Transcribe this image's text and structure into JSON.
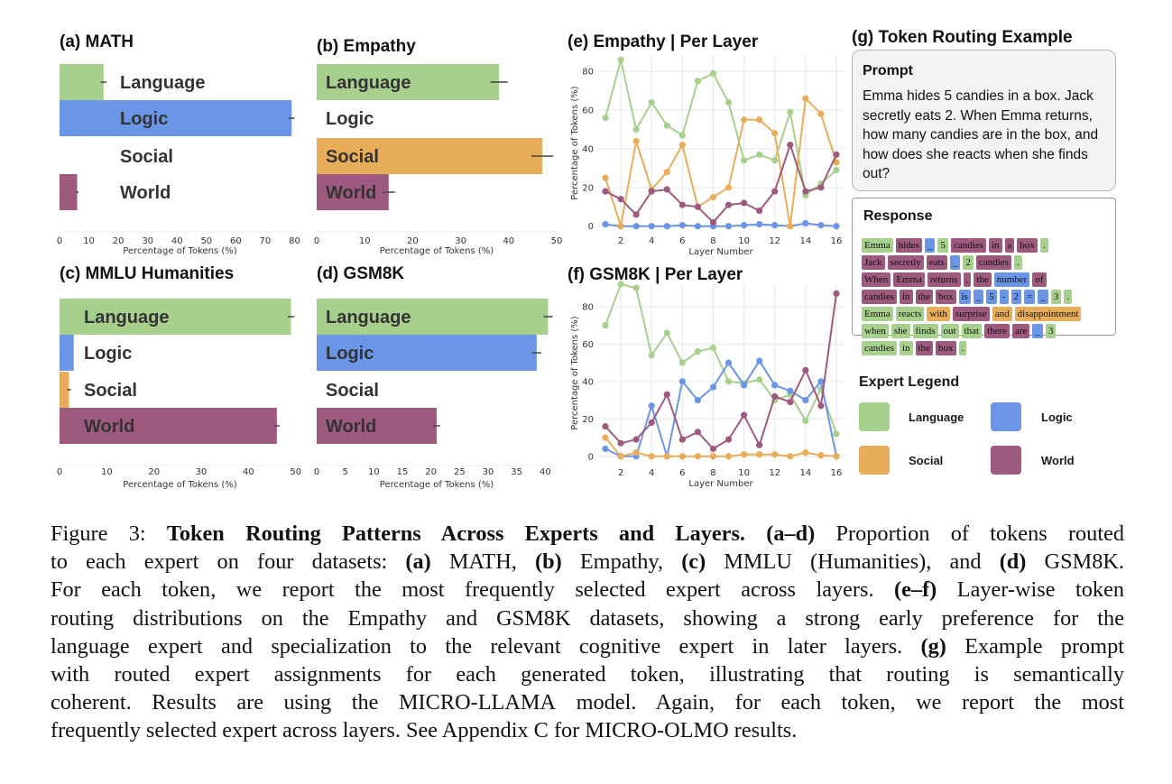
{
  "colors": {
    "Language": "#a8d08d",
    "Logic": "#6b95e6",
    "Social": "#e8ad58",
    "World": "#9e5a7e"
  },
  "experts": [
    "Language",
    "Logic",
    "Social",
    "World"
  ],
  "chart_data": [
    {
      "id": "a",
      "type": "bar",
      "title": "(a) MATH",
      "xlabel": "Percentage of Tokens (%)",
      "xlim": [
        0,
        82
      ],
      "xticks": [
        0,
        10,
        20,
        30,
        40,
        50,
        60,
        70,
        80
      ],
      "categories": [
        "Language",
        "Logic",
        "Social",
        "World"
      ],
      "values": [
        15,
        79,
        0,
        6
      ]
    },
    {
      "id": "b",
      "type": "bar",
      "title": "(b) Empathy",
      "xlabel": "Percentage of Tokens (%)",
      "xlim": [
        0,
        50
      ],
      "xticks": [
        0,
        10,
        20,
        30,
        40,
        50
      ],
      "categories": [
        "Language",
        "Logic",
        "Social",
        "World"
      ],
      "values": [
        38,
        0,
        47,
        15
      ]
    },
    {
      "id": "c",
      "type": "bar",
      "title": "(c) MMLU Humanities",
      "xlabel": "Percentage of Tokens (%)",
      "xlim": [
        0,
        51
      ],
      "xticks": [
        0,
        10,
        20,
        30,
        40,
        50
      ],
      "categories": [
        "Language",
        "Logic",
        "Social",
        "World"
      ],
      "values": [
        49,
        3,
        2,
        46
      ]
    },
    {
      "id": "d",
      "type": "bar",
      "title": "(d) GSM8K",
      "xlabel": "Percentage of Tokens (%)",
      "xlim": [
        0,
        42
      ],
      "xticks": [
        0,
        5,
        10,
        15,
        20,
        25,
        30,
        35,
        40
      ],
      "categories": [
        "Language",
        "Logic",
        "Social",
        "World"
      ],
      "values": [
        40.5,
        38.5,
        0,
        21
      ]
    },
    {
      "id": "e",
      "type": "line",
      "title": "(e) Empathy | Per Layer",
      "xlabel": "Layer Number",
      "ylabel": "Percentage of Tokens (%)",
      "ylim": [
        -2,
        88
      ],
      "yticks": [
        0,
        20,
        40,
        60,
        80
      ],
      "xticks": [
        2,
        4,
        6,
        8,
        10,
        12,
        14,
        16
      ],
      "x": [
        1,
        2,
        3,
        4,
        5,
        6,
        7,
        8,
        9,
        10,
        11,
        12,
        13,
        14,
        15,
        16
      ],
      "series": [
        {
          "name": "Language",
          "values": [
            56,
            86,
            50,
            64,
            52,
            47,
            75,
            79,
            64,
            34,
            37,
            34,
            59,
            16,
            22,
            29
          ]
        },
        {
          "name": "Logic",
          "values": [
            1,
            0,
            0,
            0,
            0,
            0.5,
            0,
            0,
            0,
            0.5,
            1,
            0.5,
            0,
            1.5,
            0.5,
            0
          ]
        },
        {
          "name": "Social",
          "values": [
            25,
            0,
            44,
            19,
            28,
            42,
            10,
            15,
            20,
            55,
            55,
            48,
            0,
            66,
            58,
            33
          ]
        },
        {
          "name": "World",
          "values": [
            18,
            14,
            6,
            18,
            19,
            11,
            10,
            2,
            11,
            12,
            8,
            18,
            42,
            18,
            20,
            37
          ]
        }
      ]
    },
    {
      "id": "f",
      "type": "line",
      "title": "(f) GSM8K | Per Layer",
      "xlabel": "Layer Number",
      "ylabel": "Percentage of Tokens (%)",
      "ylim": [
        -3,
        92
      ],
      "yticks": [
        0,
        20,
        40,
        60,
        80
      ],
      "xticks": [
        2,
        4,
        6,
        8,
        10,
        12,
        14,
        16
      ],
      "x": [
        1,
        2,
        3,
        4,
        5,
        6,
        7,
        8,
        9,
        10,
        11,
        12,
        13,
        14,
        15,
        16
      ],
      "series": [
        {
          "name": "Language",
          "values": [
            70,
            92,
            90,
            54,
            66,
            50,
            56,
            58,
            40,
            39,
            41,
            30,
            33,
            19,
            36,
            12
          ]
        },
        {
          "name": "Logic",
          "values": [
            4,
            0,
            0,
            27,
            0,
            40,
            30,
            37,
            50,
            38,
            51,
            38,
            35,
            30,
            40,
            0
          ]
        },
        {
          "name": "Social",
          "values": [
            10,
            0,
            2,
            0,
            0,
            0,
            0,
            0,
            0,
            1,
            1,
            1,
            0,
            2,
            0.5,
            0
          ]
        },
        {
          "name": "World",
          "values": [
            16,
            7,
            9,
            18,
            33,
            9,
            13,
            4,
            9,
            22,
            6,
            32,
            29,
            46,
            27,
            87
          ]
        }
      ]
    }
  ],
  "panel_g": {
    "title": "(g) Token Routing Example",
    "prompt_title": "Prompt",
    "prompt_text": "Emma hides 5 candies in a box. Jack secretly eats 2. When Emma returns, how many candies are in the box, and how does she reacts when she finds out?",
    "response_title": "Response",
    "response_lines": [
      [
        [
          "Emma",
          "Language"
        ],
        [
          "hides",
          "World"
        ],
        [
          "_",
          "Logic"
        ],
        [
          "5",
          "Language"
        ],
        [
          "candies",
          "World"
        ],
        [
          "in",
          "World"
        ],
        [
          "a",
          "World"
        ],
        [
          "box",
          "World"
        ],
        [
          ".",
          "Language"
        ]
      ],
      [
        [
          "Jack",
          "World"
        ],
        [
          "secretly",
          "World"
        ],
        [
          "eats",
          "World"
        ],
        [
          "_",
          "Logic"
        ],
        [
          "2",
          "Language"
        ],
        [
          "candies",
          "World"
        ],
        [
          ".",
          "Language"
        ]
      ],
      [
        [
          "When",
          "World"
        ],
        [
          "Emma",
          "World"
        ],
        [
          "returns",
          "World"
        ],
        [
          ",",
          "World"
        ],
        [
          "the",
          "World"
        ],
        [
          "number",
          "Logic"
        ],
        [
          "of",
          "World"
        ]
      ],
      [
        [
          "candies",
          "World"
        ],
        [
          "in",
          "World"
        ],
        [
          "the",
          "World"
        ],
        [
          "box",
          "World"
        ],
        [
          "is",
          "Logic"
        ],
        [
          "_",
          "Logic"
        ],
        [
          "5",
          "Logic"
        ],
        [
          "-",
          "Logic"
        ],
        [
          "2",
          "Logic"
        ],
        [
          "=",
          "Logic"
        ],
        [
          "_",
          "Logic"
        ],
        [
          "3",
          "Language"
        ],
        [
          ".",
          "Language"
        ]
      ],
      [
        [
          "Emma",
          "Language"
        ],
        [
          "reacts",
          "Language"
        ],
        [
          "with",
          "Social"
        ],
        [
          "surprise",
          "World"
        ],
        [
          "and",
          "Social"
        ],
        [
          "disappointment",
          "Social"
        ]
      ],
      [
        [
          "when",
          "Language"
        ],
        [
          "she",
          "Language"
        ],
        [
          "finds",
          "Language"
        ],
        [
          "out",
          "Language"
        ],
        [
          "that",
          "Language"
        ],
        [
          "there",
          "World"
        ],
        [
          "are",
          "World"
        ],
        [
          "_",
          "Logic"
        ],
        [
          "3",
          "Language"
        ]
      ],
      [
        [
          "candies",
          "Language"
        ],
        [
          "in",
          "Language"
        ],
        [
          "the",
          "World"
        ],
        [
          "box",
          "World"
        ],
        [
          ".",
          "Language"
        ]
      ]
    ],
    "legend_title": "Expert Legend",
    "legend_items": [
      "Language",
      "Logic",
      "Social",
      "World"
    ]
  },
  "caption": {
    "prefix": "Figure 3:",
    "title": "Token Routing Patterns Across Experts and Layers.",
    "lines": [
      "Figure 3:  Token Routing Patterns Across Experts and Layers. (a–d) Proportion of tokens routed",
      "to each expert on four datasets: (a) MATH, (b) Empathy, (c) MMLU (Humanities), and (d) GSM8K.",
      "For each token, we report the most frequently selected expert across layers. (e–f) Layer-wise token",
      "routing distributions on the Empathy and GSM8K datasets, showing a strong early preference for the",
      "language expert and specialization to the relevant cognitive expert in later layers. (g) Example prompt",
      "with routed expert assignments for each generated token, illustrating that routing is semantically",
      "coherent. Results are using the MICRO-LLAMA model. Again, for each token, we report the most",
      "frequently selected expert across layers. See Appendix C for MICRO-OLMO results."
    ]
  }
}
